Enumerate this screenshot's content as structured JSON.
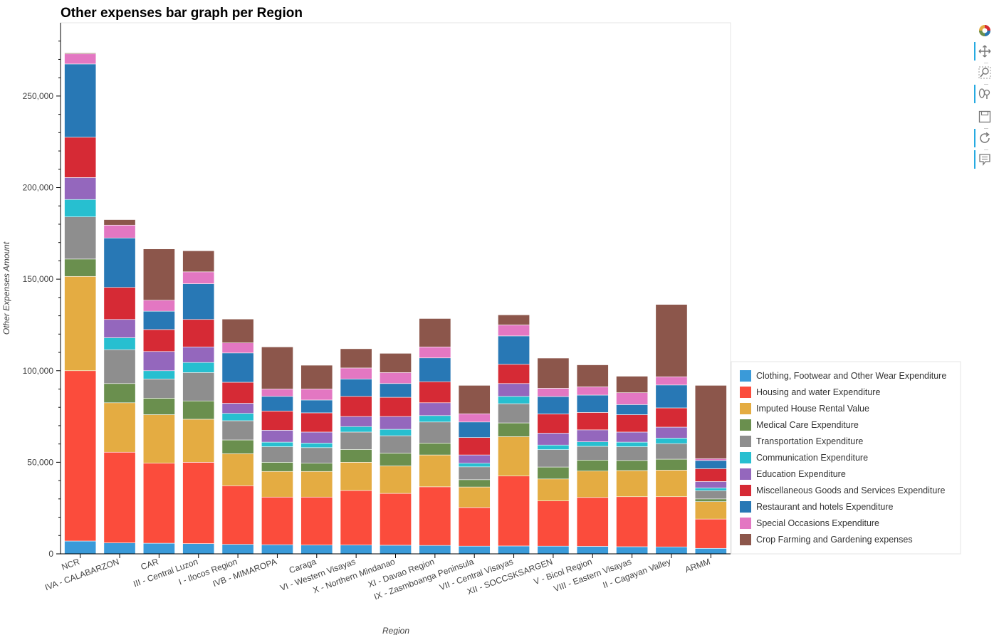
{
  "chart_data": {
    "type": "bar",
    "stacked": true,
    "title": "Other expenses bar graph per Region",
    "xlabel": "Region",
    "ylabel": "Other Expenses Amount",
    "ylim": [
      0,
      290000
    ],
    "yticks": [
      0,
      50000,
      100000,
      150000,
      200000,
      250000
    ],
    "ytick_labels": [
      "0",
      "50,000",
      "100,000",
      "150,000",
      "200,000",
      "250,000"
    ],
    "grid": false,
    "legend_position": "bottom-right",
    "categories": [
      "NCR",
      "IVA - CALABARZON",
      "CAR",
      "III - Central Luzon",
      "I - Ilocos Region",
      "IVB - MIMAROPA",
      "Caraga",
      "VI - Western Visayas",
      "X - Northern Mindanao",
      "XI - Davao Region",
      "IX - Zasmboanga Peninsula",
      "VII - Central Visayas",
      "XII - SOCCSKSARGEN",
      "V - Bicol Region",
      "VIII - Eastern Visayas",
      "II - Cagayan Valley",
      "ARMM"
    ],
    "series": [
      {
        "name": "Clothing, Footwear and Other Wear Expenditure",
        "color": "#3a9ad9",
        "values": [
          7000,
          6000,
          5800,
          5600,
          5200,
          5000,
          4800,
          4800,
          4700,
          4600,
          4200,
          4300,
          4200,
          4100,
          3900,
          3800,
          3000
        ]
      },
      {
        "name": "Housing and water Expenditure",
        "color": "#fb4c3c",
        "values": [
          93000,
          49500,
          43700,
          44400,
          32000,
          26000,
          26200,
          29800,
          28300,
          32000,
          21100,
          38200,
          24700,
          26700,
          27300,
          27400,
          16000
        ]
      },
      {
        "name": "Imputed House Rental Value",
        "color": "#e4ac42",
        "values": [
          51500,
          27000,
          26500,
          23500,
          17500,
          14000,
          14000,
          15400,
          15000,
          17400,
          11200,
          21500,
          12000,
          14400,
          14300,
          14500,
          9500
        ]
      },
      {
        "name": "Medical Care Expenditure",
        "color": "#6a8f4e",
        "values": [
          9500,
          10500,
          9000,
          10000,
          7500,
          5000,
          4500,
          7000,
          7000,
          6500,
          4000,
          7500,
          6500,
          6000,
          5500,
          6000,
          1500
        ]
      },
      {
        "name": "Transportation Expenditure",
        "color": "#8e8e8e",
        "values": [
          23000,
          18500,
          10500,
          15500,
          10500,
          8500,
          8500,
          9500,
          9500,
          11500,
          7000,
          10500,
          9500,
          7500,
          7500,
          8500,
          4500
        ]
      },
      {
        "name": "Communication Expenditure",
        "color": "#27bfd0",
        "values": [
          9500,
          6500,
          4500,
          5500,
          4000,
          2500,
          2500,
          3000,
          3500,
          3500,
          2000,
          4000,
          2500,
          2500,
          2500,
          3000,
          1500
        ]
      },
      {
        "name": "Education Expenditure",
        "color": "#9467bd",
        "values": [
          12000,
          10000,
          10500,
          8500,
          5500,
          6500,
          6000,
          5500,
          7000,
          7000,
          4500,
          7000,
          6500,
          6500,
          5500,
          6000,
          3500
        ]
      },
      {
        "name": "Miscellaneous Goods and Services Expenditure",
        "color": "#d62a35",
        "values": [
          22000,
          17500,
          12000,
          15000,
          11500,
          10500,
          10500,
          11000,
          10500,
          11500,
          9500,
          10500,
          10500,
          9500,
          9500,
          10500,
          7000
        ]
      },
      {
        "name": "Restaurant and hotels Expenditure",
        "color": "#2878b5",
        "values": [
          40000,
          27000,
          10000,
          19500,
          16000,
          8000,
          7000,
          9500,
          7500,
          13000,
          8500,
          15500,
          9500,
          9500,
          5500,
          12500,
          4500
        ]
      },
      {
        "name": "Special Occasions Expenditure",
        "color": "#e377c2",
        "values": [
          5500,
          7000,
          6000,
          6500,
          5500,
          4000,
          6000,
          6000,
          6000,
          6000,
          4500,
          6000,
          4500,
          4500,
          6500,
          4500,
          1000
        ]
      },
      {
        "name": "Crop Farming and Gardening expenses",
        "color": "#8c564b",
        "values": [
          500,
          3000,
          28000,
          11500,
          13000,
          23000,
          13000,
          10500,
          10500,
          15500,
          15500,
          5500,
          16500,
          12000,
          9000,
          39500,
          40000
        ]
      }
    ]
  }
}
